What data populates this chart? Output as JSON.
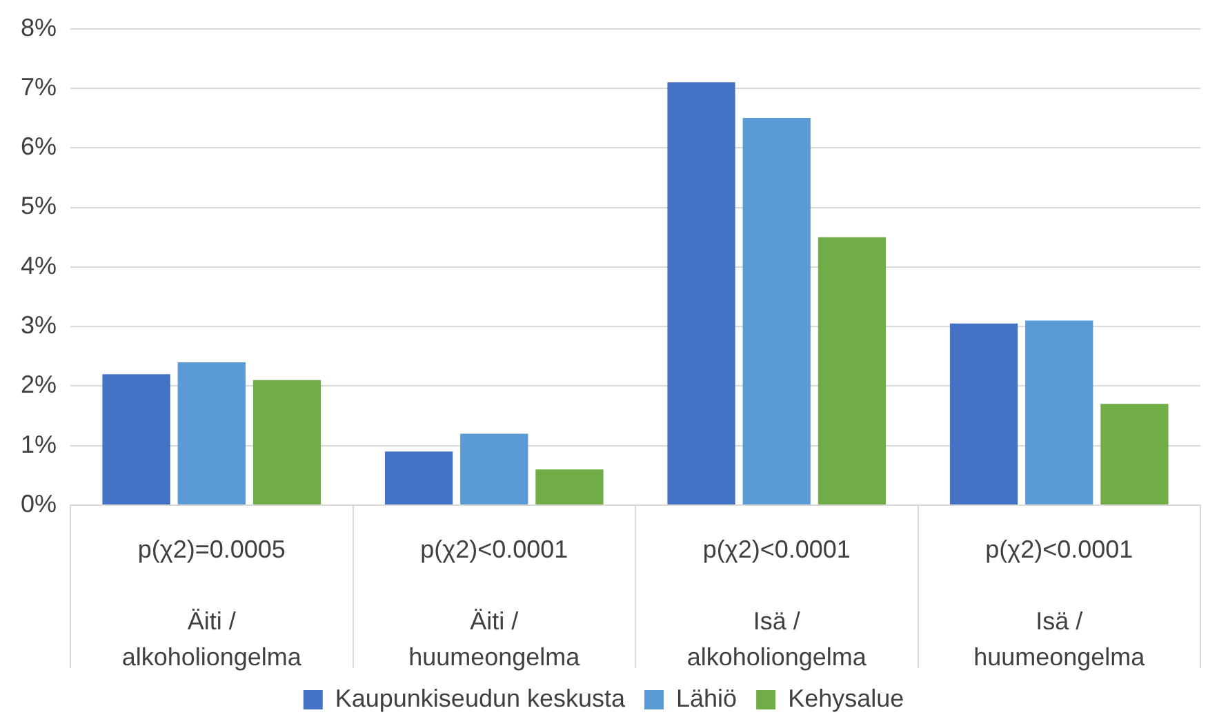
{
  "chart_data": {
    "type": "bar",
    "categories": [
      "Äiti / alkoholiongelma",
      "Äiti / huumeongelma",
      "Isä / alkoholiongelma",
      "Isä / huumeongelma"
    ],
    "series": [
      {
        "name": "Kaupunkiseudun keskusta",
        "color": "#4472c4",
        "values": [
          2.2,
          0.9,
          7.1,
          3.05
        ]
      },
      {
        "name": "Lähiö",
        "color": "#5b9bd5",
        "values": [
          2.4,
          1.2,
          6.5,
          3.1
        ]
      },
      {
        "name": "Kehysalue",
        "color": "#70ad47",
        "values": [
          2.1,
          0.6,
          4.5,
          1.7
        ]
      }
    ],
    "annotations": [
      "p(χ2)=0.0005",
      "p(χ2)<0.0001",
      "p(χ2)<0.0001",
      "p(χ2)<0.0001"
    ],
    "ylim": [
      0,
      8
    ],
    "yticks": [
      {
        "value": 0,
        "label": "0%"
      },
      {
        "value": 1,
        "label": "1%"
      },
      {
        "value": 2,
        "label": "2%"
      },
      {
        "value": 3,
        "label": "3%"
      },
      {
        "value": 4,
        "label": "4%"
      },
      {
        "value": 5,
        "label": "5%"
      },
      {
        "value": 6,
        "label": "6%"
      },
      {
        "value": 7,
        "label": "7%"
      },
      {
        "value": 8,
        "label": "8%"
      }
    ],
    "grid": "y",
    "legend": "bottom"
  }
}
